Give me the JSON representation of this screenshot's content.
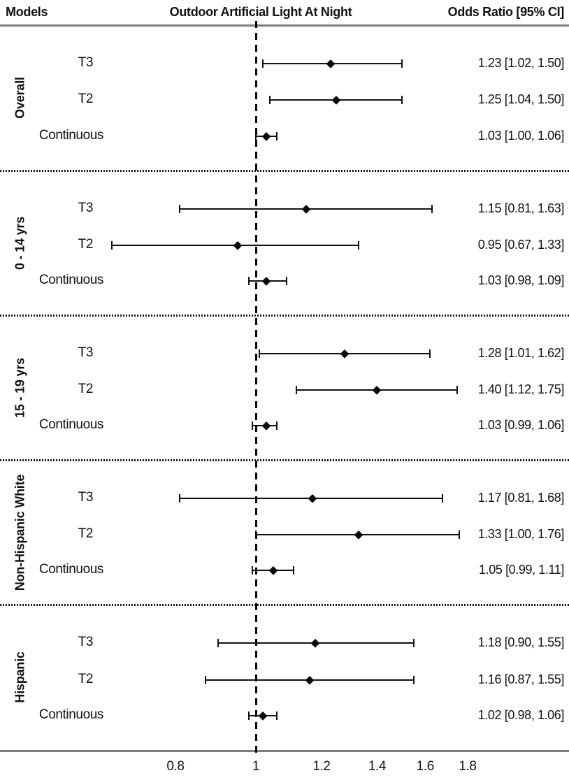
{
  "header": {
    "models": "Models",
    "title": "Outdoor Artificial Light At Night",
    "or_header": "Odds Ratio [95% CI]"
  },
  "chart_data": {
    "type": "forest",
    "title": "Outdoor Artificial Light At Night",
    "left_column_header": "Models",
    "right_column_header": "Odds Ratio [95% CI]",
    "xscale": "log10",
    "xticks": [
      "0.8",
      "1",
      "1.2",
      "1.4",
      "1.6",
      "1.8"
    ],
    "refline": 1,
    "legend_position": "none",
    "grid": false,
    "groups": [
      {
        "label": "Overall",
        "rows": [
          {
            "model": "T3",
            "or": 1.23,
            "ci_low": 1.02,
            "ci_high": 1.5,
            "text": "1.23 [1.02, 1.50]"
          },
          {
            "model": "T2",
            "or": 1.25,
            "ci_low": 1.04,
            "ci_high": 1.5,
            "text": "1.25 [1.04, 1.50]"
          },
          {
            "model": "Continuous",
            "or": 1.03,
            "ci_low": 1.0,
            "ci_high": 1.06,
            "text": "1.03 [1.00, 1.06]"
          }
        ]
      },
      {
        "label": "0 - 14 yrs",
        "rows": [
          {
            "model": "T3",
            "or": 1.15,
            "ci_low": 0.81,
            "ci_high": 1.63,
            "text": "1.15 [0.81, 1.63]"
          },
          {
            "model": "T2",
            "or": 0.95,
            "ci_low": 0.67,
            "ci_high": 1.33,
            "text": "0.95 [0.67, 1.33]"
          },
          {
            "model": "Continuous",
            "or": 1.03,
            "ci_low": 0.98,
            "ci_high": 1.09,
            "text": "1.03 [0.98, 1.09]"
          }
        ]
      },
      {
        "label": "15 - 19 yrs",
        "rows": [
          {
            "model": "T3",
            "or": 1.28,
            "ci_low": 1.01,
            "ci_high": 1.62,
            "text": "1.28 [1.01, 1.62]"
          },
          {
            "model": "T2",
            "or": 1.4,
            "ci_low": 1.12,
            "ci_high": 1.75,
            "text": "1.40 [1.12, 1.75]"
          },
          {
            "model": "Continuous",
            "or": 1.03,
            "ci_low": 0.99,
            "ci_high": 1.06,
            "text": "1.03 [0.99, 1.06]"
          }
        ]
      },
      {
        "label": "Non-Hispanic White",
        "rows": [
          {
            "model": "T3",
            "or": 1.17,
            "ci_low": 0.81,
            "ci_high": 1.68,
            "text": "1.17 [0.81, 1.68]"
          },
          {
            "model": "T2",
            "or": 1.33,
            "ci_low": 1.0,
            "ci_high": 1.76,
            "text": "1.33 [1.00, 1.76]"
          },
          {
            "model": "Continuous",
            "or": 1.05,
            "ci_low": 0.99,
            "ci_high": 1.11,
            "text": "1.05 [0.99, 1.11]"
          }
        ]
      },
      {
        "label": "Hispanic",
        "rows": [
          {
            "model": "T3",
            "or": 1.18,
            "ci_low": 0.9,
            "ci_high": 1.55,
            "text": "1.18 [0.90, 1.55]"
          },
          {
            "model": "T2",
            "or": 1.16,
            "ci_low": 0.87,
            "ci_high": 1.55,
            "text": "1.16 [0.87, 1.55]"
          },
          {
            "model": "Continuous",
            "or": 1.02,
            "ci_low": 0.98,
            "ci_high": 1.06,
            "text": "1.02 [0.98, 1.06]"
          }
        ]
      }
    ]
  }
}
